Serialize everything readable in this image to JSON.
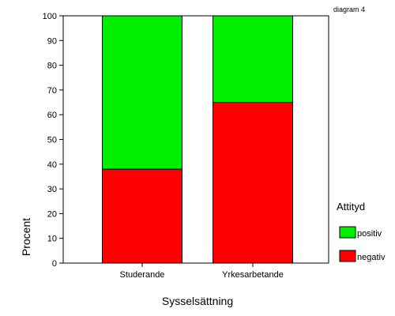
{
  "note": "diagram 4",
  "colors": {
    "positiv": "#00ee00",
    "negativ": "#ff0000",
    "stroke": "#000000"
  },
  "chart_data": {
    "type": "bar",
    "stacked": true,
    "categories": [
      "Studerande",
      "Yrkesarbetande"
    ],
    "series": [
      {
        "name": "negativ",
        "values": [
          38,
          65
        ]
      },
      {
        "name": "positiv",
        "values": [
          62,
          35
        ]
      }
    ],
    "title": "",
    "xlabel": "Sysselsättning",
    "ylabel": "Procent",
    "ylim": [
      0,
      100
    ],
    "yticks": [
      0,
      10,
      20,
      30,
      40,
      50,
      60,
      70,
      80,
      90,
      100
    ],
    "legend": {
      "title": "Attityd",
      "placement": "right",
      "entries": [
        "positiv",
        "negativ"
      ]
    },
    "grid": false
  }
}
